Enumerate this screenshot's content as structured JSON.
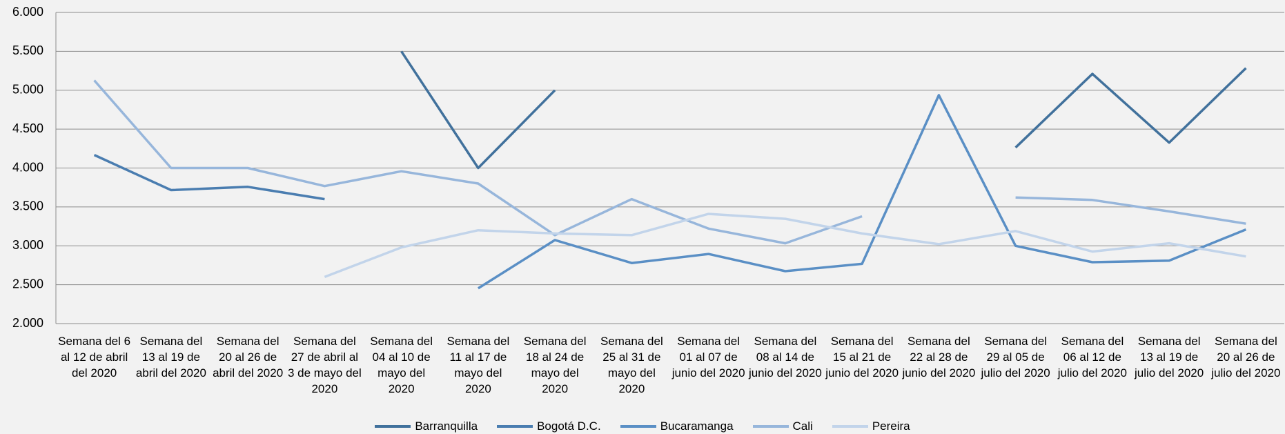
{
  "chart_data": {
    "type": "line",
    "categories": [
      "Semana del 6 al 12 de abril del 2020",
      "Semana del 13 al 19 de abril del 2020",
      "Semana del 20 al 26 de abril del 2020",
      "Semana del 27 de abril al 3 de mayo del 2020",
      "Semana del 04 al 10 de mayo del 2020",
      "Semana del 11 al 17 de mayo del 2020",
      "Semana del 18 al 24 de mayo del 2020",
      "Semana del 25 al 31 de mayo del 2020",
      "Semana del 01 al 07 de junio del 2020",
      "Semana del 08 al 14 de junio del 2020",
      "Semana del 15 al 21 de junio del 2020",
      "Semana del 22 al 28 de junio del 2020",
      "Semana del 29 al 05 de julio del 2020",
      "Semana del 06 al 12 de julio del 2020",
      "Semana del 13 al 19 de julio del 2020",
      "Semana del 20 al 26 de julio del 2020"
    ],
    "series": [
      {
        "name": "Barranquilla",
        "color": "#41719c",
        "values": [
          null,
          null,
          null,
          null,
          5500,
          4000,
          5000,
          null,
          null,
          null,
          null,
          null,
          4263,
          5210,
          4326,
          5284
        ]
      },
      {
        "name": "Bogotá D.C.",
        "color": "#4a7db0",
        "values": [
          4168,
          3716,
          3758,
          3600,
          null,
          null,
          null,
          null,
          null,
          null,
          null,
          null,
          null,
          null,
          null,
          null
        ]
      },
      {
        "name": "Bucaramanga",
        "color": "#5a8fc5",
        "values": [
          null,
          null,
          null,
          null,
          null,
          2453,
          3074,
          2779,
          2895,
          2674,
          2768,
          4937,
          3000,
          2789,
          2810,
          3210
        ]
      },
      {
        "name": "Cali",
        "color": "#97b6db",
        "values": [
          5126,
          4000,
          4000,
          3768,
          3958,
          3800,
          3137,
          3600,
          3221,
          3032,
          3379,
          null,
          3621,
          3589,
          3442,
          3284
        ]
      },
      {
        "name": "Pereira",
        "color": "#c2d4ea",
        "values": [
          null,
          null,
          null,
          2600,
          2979,
          3200,
          3158,
          3137,
          3410,
          3347,
          3158,
          3021,
          3189,
          2926,
          3032,
          2863
        ]
      }
    ],
    "ylim": [
      2000,
      6000
    ],
    "yticks": [
      {
        "value": 2000,
        "label": "2.000"
      },
      {
        "value": 2500,
        "label": "2.500"
      },
      {
        "value": 3000,
        "label": "3.000"
      },
      {
        "value": 3500,
        "label": "3.500"
      },
      {
        "value": 4000,
        "label": "4.000"
      },
      {
        "value": 4500,
        "label": "4.500"
      },
      {
        "value": 5000,
        "label": "5.000"
      },
      {
        "value": 5500,
        "label": "5.500"
      },
      {
        "value": 6000,
        "label": "6.000"
      }
    ],
    "grid": true,
    "legend": "bottom"
  }
}
